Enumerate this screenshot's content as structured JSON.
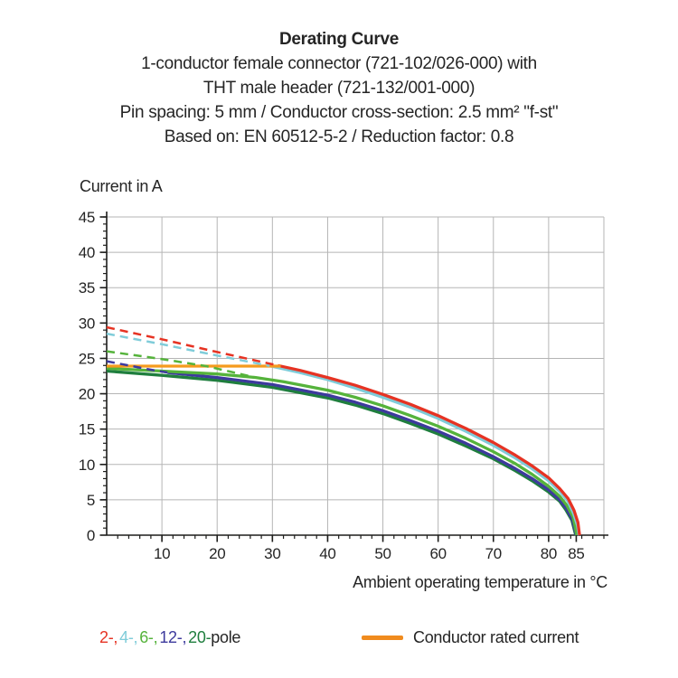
{
  "title_block": {
    "title": "Derating Curve",
    "lines": [
      "1-conductor female connector (721-102/026-000) with",
      "THT male header (721-132/001-000)",
      "Pin spacing: 5 mm / Conductor cross-section: 2.5 mm² \"f-st\"",
      "Based on: EN 60512-5-2 / Reduction factor: 0.8"
    ]
  },
  "chart_data": {
    "type": "line",
    "title": "Derating Curve",
    "ylabel": "Current in A",
    "xlabel": "Ambient operating temperature in °C",
    "xlim": [
      0,
      90
    ],
    "ylim": [
      0,
      45
    ],
    "grid": true,
    "x_gridline_step": 10,
    "y_gridline_step": 5,
    "x_minor_tick_step": 2,
    "y_minor_tick_step": 1,
    "x_tick_labels": [
      10,
      20,
      30,
      40,
      50,
      60,
      70,
      80,
      85
    ],
    "y_tick_labels": [
      0,
      5,
      10,
      15,
      20,
      25,
      30,
      35,
      40,
      45
    ],
    "grid_color": "#b5b5b5",
    "axis_color": "#1d1d1b",
    "dash_pattern": "9 6",
    "rated_line": {
      "name": "Conductor rated current",
      "color": "#f59b1e",
      "points": [
        [
          0,
          23.9
        ],
        [
          31.5,
          23.9
        ]
      ]
    },
    "series": [
      {
        "name": "2-pole",
        "color": "#e63323",
        "dashed": [
          [
            0,
            29.4
          ],
          [
            10,
            27.7
          ],
          [
            20,
            25.9
          ],
          [
            31,
            24.0
          ]
        ],
        "solid": [
          [
            31,
            24.0
          ],
          [
            35,
            23.3
          ],
          [
            40,
            22.3
          ],
          [
            45,
            21.2
          ],
          [
            50,
            19.9
          ],
          [
            55,
            18.5
          ],
          [
            60,
            16.9
          ],
          [
            65,
            15.1
          ],
          [
            70,
            13.1
          ],
          [
            74,
            11.3
          ],
          [
            77,
            9.8
          ],
          [
            80,
            8.1
          ],
          [
            82,
            6.6
          ],
          [
            83.5,
            5.2
          ],
          [
            84.6,
            3.5
          ],
          [
            85.3,
            1.8
          ],
          [
            85.6,
            0
          ]
        ]
      },
      {
        "name": "4-pole",
        "color": "#7fccd9",
        "dashed": [
          [
            0,
            28.5
          ],
          [
            10,
            27.0
          ],
          [
            20,
            25.4
          ],
          [
            29.5,
            23.95
          ]
        ],
        "solid": [
          [
            29.5,
            23.95
          ],
          [
            35,
            23.0
          ],
          [
            40,
            22.0
          ],
          [
            45,
            20.8
          ],
          [
            50,
            19.5
          ],
          [
            55,
            18.1
          ],
          [
            60,
            16.5
          ],
          [
            65,
            14.7
          ],
          [
            70,
            12.7
          ],
          [
            74,
            10.9
          ],
          [
            77,
            9.4
          ],
          [
            80,
            7.7
          ],
          [
            82,
            6.2
          ],
          [
            83.5,
            4.8
          ],
          [
            84.5,
            3.1
          ],
          [
            85.2,
            1.4
          ],
          [
            85.5,
            0
          ]
        ]
      },
      {
        "name": "6-pole",
        "color": "#55b33b",
        "dashed": [
          [
            0,
            26.0
          ],
          [
            10,
            24.9
          ],
          [
            18,
            23.9
          ],
          [
            27,
            22.3
          ]
        ],
        "solid": [
          [
            0,
            23.6
          ],
          [
            10,
            23.2
          ],
          [
            20,
            22.8
          ],
          [
            27,
            22.3
          ],
          [
            32,
            21.7
          ],
          [
            40,
            20.5
          ],
          [
            45,
            19.5
          ],
          [
            50,
            18.3
          ],
          [
            55,
            16.9
          ],
          [
            60,
            15.4
          ],
          [
            65,
            13.7
          ],
          [
            70,
            11.8
          ],
          [
            74,
            10.1
          ],
          [
            77,
            8.6
          ],
          [
            80,
            6.9
          ],
          [
            82,
            5.5
          ],
          [
            83.3,
            4.2
          ],
          [
            84.4,
            2.6
          ],
          [
            85.1,
            0
          ]
        ]
      },
      {
        "name": "12-pole",
        "color": "#3d3a9d",
        "dashed": [
          [
            0,
            24.6
          ],
          [
            4,
            24.0
          ],
          [
            8,
            23.4
          ],
          [
            11,
            23.0
          ]
        ],
        "solid": [
          [
            11,
            23.0
          ],
          [
            20,
            22.3
          ],
          [
            30,
            21.3
          ],
          [
            40,
            19.8
          ],
          [
            45,
            18.8
          ],
          [
            50,
            17.6
          ],
          [
            55,
            16.2
          ],
          [
            60,
            14.7
          ],
          [
            65,
            13.0
          ],
          [
            70,
            11.1
          ],
          [
            74,
            9.4
          ],
          [
            77,
            8.0
          ],
          [
            80,
            6.4
          ],
          [
            82,
            5.0
          ],
          [
            83.2,
            3.8
          ],
          [
            84.3,
            2.2
          ],
          [
            85,
            0
          ]
        ]
      },
      {
        "name": "20-pole",
        "color": "#1f7e3e",
        "dashed": [],
        "solid": [
          [
            0,
            23.2
          ],
          [
            10,
            22.6
          ],
          [
            20,
            21.9
          ],
          [
            30,
            20.9
          ],
          [
            40,
            19.4
          ],
          [
            45,
            18.4
          ],
          [
            50,
            17.2
          ],
          [
            55,
            15.8
          ],
          [
            60,
            14.3
          ],
          [
            65,
            12.6
          ],
          [
            70,
            10.8
          ],
          [
            74,
            9.1
          ],
          [
            77,
            7.7
          ],
          [
            80,
            6.1
          ],
          [
            82,
            4.8
          ],
          [
            83.1,
            3.6
          ],
          [
            84.2,
            2.1
          ],
          [
            84.9,
            0
          ]
        ]
      }
    ]
  },
  "legend": {
    "poles": [
      {
        "label": "2-,",
        "color": "#e63323"
      },
      {
        "label": "4-,",
        "color": "#7fccd9"
      },
      {
        "label": "6-,",
        "color": "#55b33b"
      },
      {
        "label": "12-,",
        "color": "#3d3a9d"
      },
      {
        "label": "20-",
        "color": "#1f7e3e"
      }
    ],
    "pole_suffix": "pole",
    "rated_label": "Conductor rated current",
    "rated_color": "#f08b1e"
  }
}
